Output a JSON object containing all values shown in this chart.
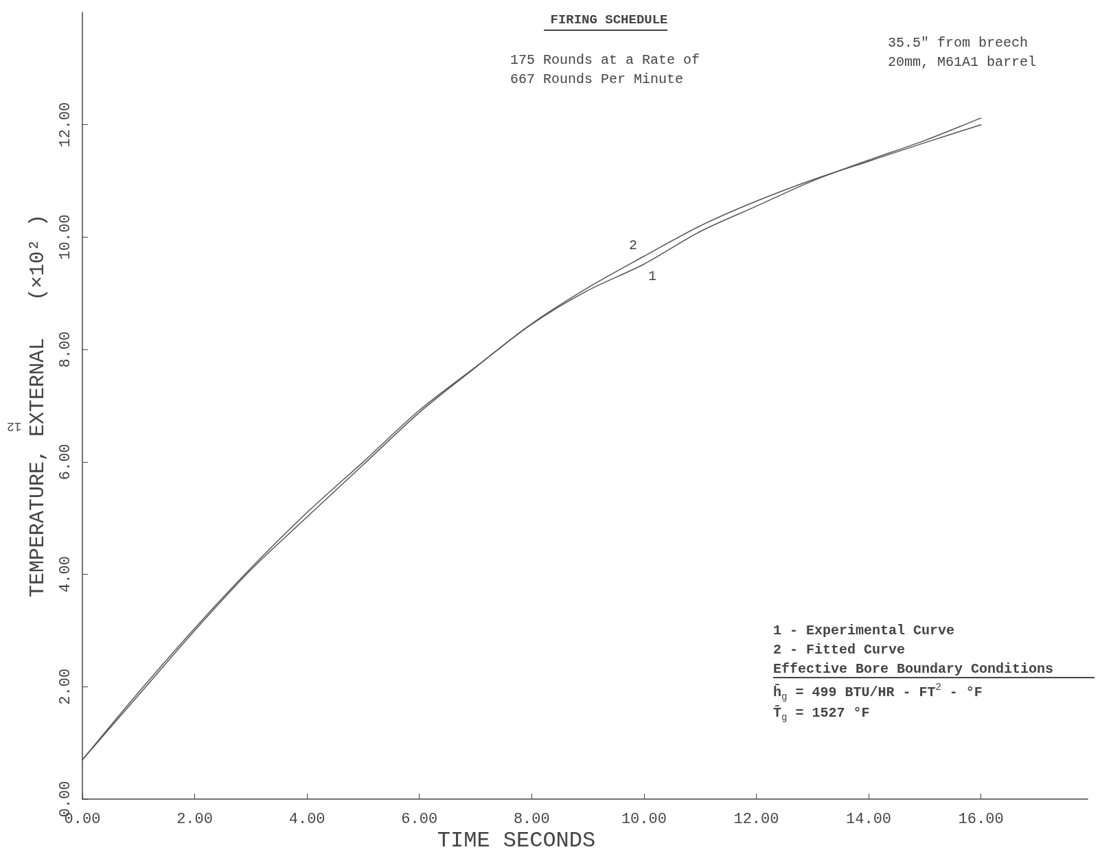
{
  "chart_data": {
    "type": "line",
    "title": "FIRING SCHEDULE",
    "subtitle": "175 Rounds at a Rate of\n667 Rounds Per Minute",
    "xlabel": "TIME SECONDS",
    "ylabel": "TEMPERATURE, EXTERNAL   (×10² )",
    "x": [
      0,
      1,
      2,
      3,
      4,
      5,
      6,
      7,
      8,
      9,
      10,
      11,
      12,
      13,
      14,
      15,
      16
    ],
    "series": [
      {
        "name": "1",
        "color": "#555555",
        "values": [
          0.7,
          1.9,
          3.04,
          4.11,
          5.1,
          6.0,
          6.92,
          7.69,
          8.45,
          9.05,
          9.52,
          10.1,
          10.55,
          11.0,
          11.37,
          11.72,
          12.12
        ]
      },
      {
        "name": "2",
        "color": "#555555",
        "values": [
          0.7,
          1.85,
          3.0,
          4.08,
          5.02,
          5.95,
          6.88,
          7.68,
          8.46,
          9.1,
          9.66,
          10.2,
          10.64,
          11.02,
          11.35,
          11.68,
          12.0
        ]
      }
    ],
    "xlim": [
      0,
      17.9
    ],
    "ylim": [
      0,
      14
    ],
    "xticks": [
      {
        "value": 0,
        "label": "0.00"
      },
      {
        "value": 2,
        "label": "2.00"
      },
      {
        "value": 4,
        "label": "4.00"
      },
      {
        "value": 6,
        "label": "6.00"
      },
      {
        "value": 8,
        "label": "8.00"
      },
      {
        "value": 10,
        "label": "10.00"
      },
      {
        "value": 12,
        "label": "12.00"
      },
      {
        "value": 14,
        "label": "14.00"
      },
      {
        "value": 16,
        "label": "16.00"
      }
    ],
    "yticks": [
      {
        "value": 0,
        "label": "0.00"
      },
      {
        "value": 2,
        "label": "2.00"
      },
      {
        "value": 4,
        "label": "4.00"
      },
      {
        "value": 6,
        "label": "6.00"
      },
      {
        "value": 8,
        "label": "8.00"
      },
      {
        "value": 10,
        "label": "10.00"
      },
      {
        "value": 12,
        "label": "12.00"
      }
    ],
    "grid": false,
    "legend": false,
    "marker": "none",
    "line_style": "solid",
    "annotations": [
      "35.5\" from breech\n20mm, M61A1 barrel",
      "1 - Experimental Curve",
      "2 - Fitted Curve",
      "Effective Bore Boundary Conditions",
      "h̄$_{g}$ = 499 BTU/HR - FT$^{2}$ - °F",
      "T̄$_{g}$ = 1527 °F",
      "12"
    ]
  }
}
